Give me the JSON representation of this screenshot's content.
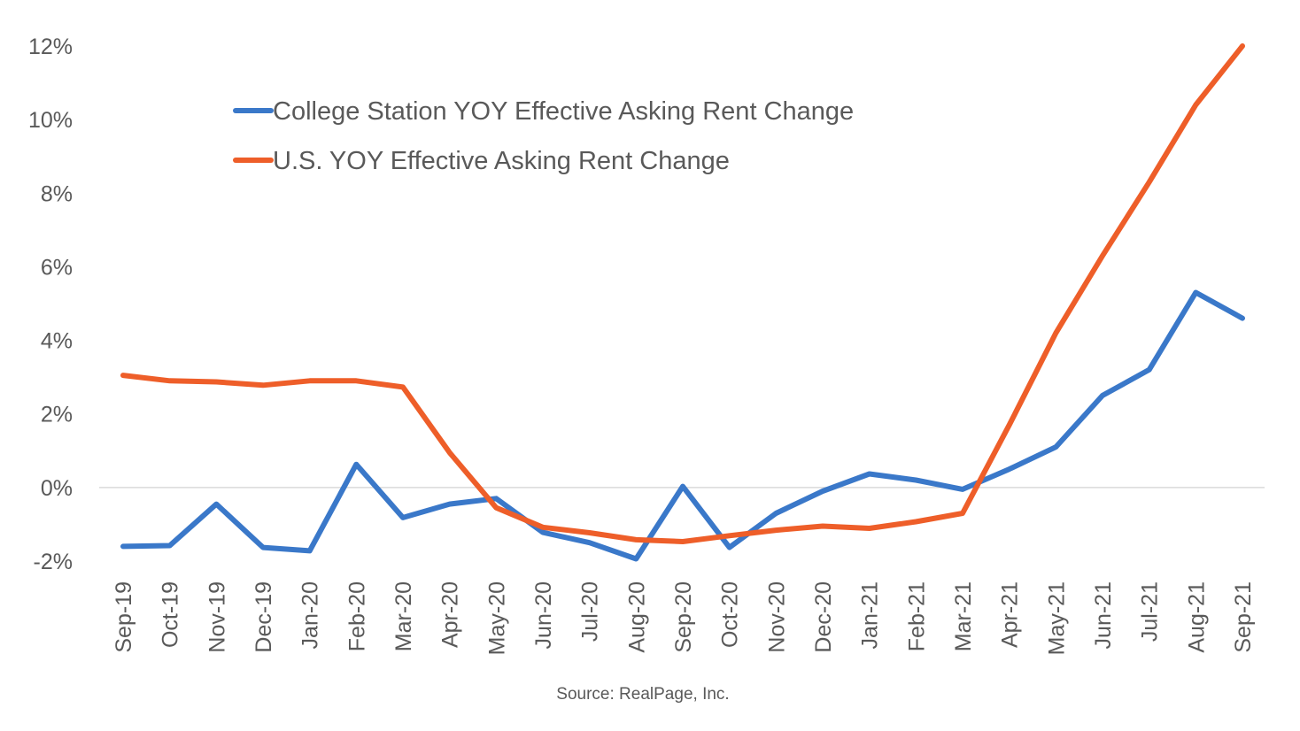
{
  "chart_data": {
    "type": "line",
    "title": "",
    "xlabel": "",
    "ylabel": "",
    "ylim": [
      -2,
      12
    ],
    "yticks": [
      -2,
      0,
      2,
      4,
      6,
      8,
      10,
      12
    ],
    "ytick_labels": [
      "-2%",
      "0%",
      "2%",
      "4%",
      "6%",
      "8%",
      "10%",
      "12%"
    ],
    "categories": [
      "Sep-19",
      "Oct-19",
      "Nov-19",
      "Dec-19",
      "Jan-20",
      "Feb-20",
      "Mar-20",
      "Apr-20",
      "May-20",
      "Jun-20",
      "Jul-20",
      "Aug-20",
      "Sep-20",
      "Oct-20",
      "Nov-20",
      "Dec-20",
      "Jan-21",
      "Feb-21",
      "Mar-21",
      "Apr-21",
      "May-21",
      "Jun-21",
      "Jul-21",
      "Aug-21",
      "Sep-21"
    ],
    "grid": false,
    "zero_line": true,
    "legend_position": "top-left",
    "series": [
      {
        "name": "College Station YOY Effective Asking Rent Change",
        "color": "#3a78c9",
        "values": [
          -1.6,
          -1.58,
          -0.45,
          -1.63,
          -1.72,
          0.63,
          -0.82,
          -0.45,
          -0.3,
          -1.22,
          -1.5,
          -1.94,
          0.03,
          -1.63,
          -0.7,
          -0.1,
          0.37,
          0.2,
          -0.05,
          0.5,
          1.1,
          2.5,
          3.2,
          5.3,
          4.6
        ]
      },
      {
        "name": "U.S. YOY Effective Asking Rent Change",
        "color": "#ee5e29",
        "values": [
          3.05,
          2.9,
          2.87,
          2.78,
          2.9,
          2.9,
          2.73,
          0.95,
          -0.55,
          -1.08,
          -1.23,
          -1.42,
          -1.47,
          -1.31,
          -1.16,
          -1.05,
          -1.11,
          -0.93,
          -0.7,
          1.7,
          4.2,
          6.3,
          8.3,
          10.4,
          12.0
        ]
      }
    ],
    "source": "Source: RealPage, Inc."
  }
}
